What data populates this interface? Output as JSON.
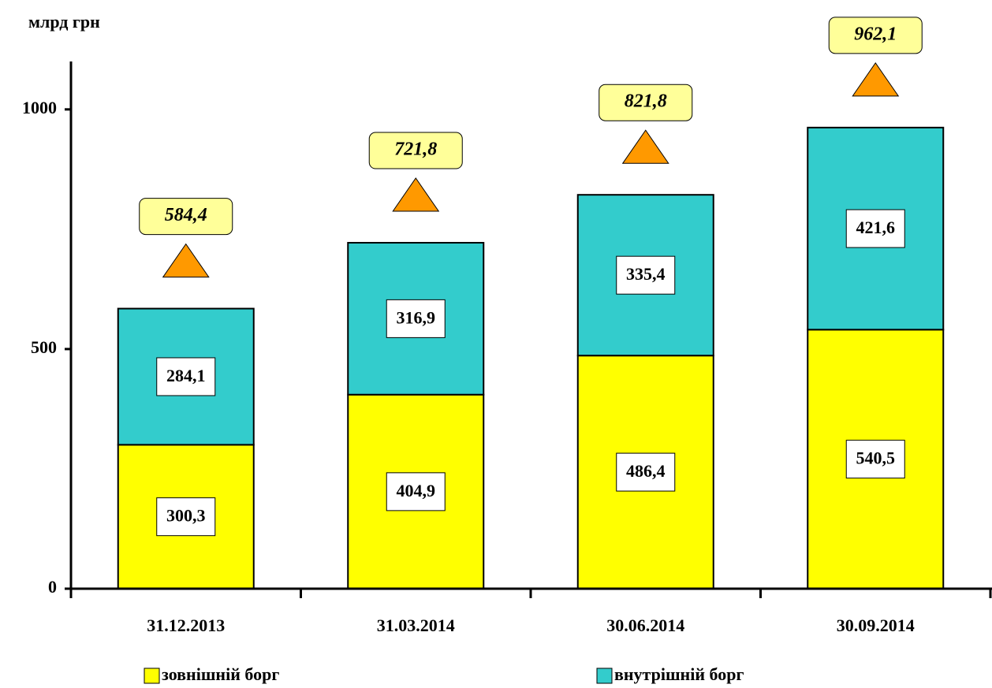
{
  "chart_data": {
    "type": "stacked_bar",
    "y_axis_label": "млрд грн",
    "categories": [
      "31.12.2013",
      "31.03.2014",
      "30.06.2014",
      "30.09.2014"
    ],
    "series": [
      {
        "name": "зовнішній борг",
        "color": "#ffff00",
        "values": [
          300.3,
          404.9,
          486.4,
          540.5
        ],
        "value_labels": [
          "300,3",
          "404,9",
          "486,4",
          "540,5"
        ]
      },
      {
        "name": "внутрішній борг",
        "color": "#33cccc",
        "values": [
          284.1,
          316.9,
          335.4,
          421.6
        ],
        "value_labels": [
          "284,1",
          "316,9",
          "335,4",
          "421,6"
        ]
      }
    ],
    "totals": [
      584.4,
      721.8,
      821.8,
      962.1
    ],
    "totals_labels": [
      "584,4",
      "721,8",
      "821,8",
      "962,1"
    ],
    "totals_marker_color": "#ff9900",
    "ylim": [
      0,
      1100
    ],
    "yticks": [
      0,
      500,
      1000
    ],
    "grid": false
  }
}
